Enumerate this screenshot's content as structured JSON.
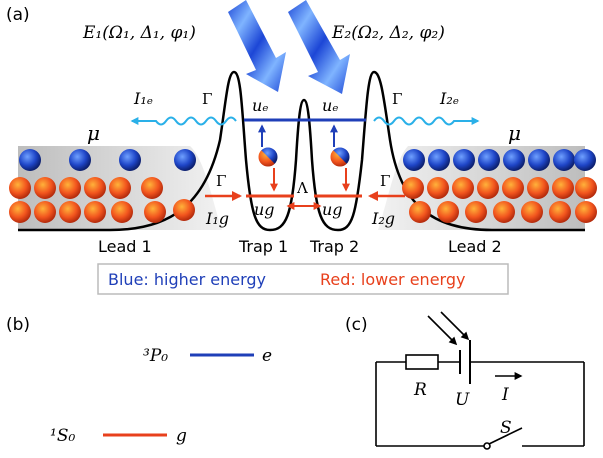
{
  "panel_a": {
    "label": "(a)",
    "field1": "E₁(Ω₁, Δ₁, φ₁)",
    "field2": "E₂(Ω₂, Δ₂, φ₂)",
    "current_1e": "I₁ₑ",
    "current_2e": "I₂ₑ",
    "current_1g": "I₁g",
    "current_2g": "I₂g",
    "gamma": "Γ",
    "lambda": "Λ",
    "mu": "μ",
    "u_e": "uₑ",
    "u_g": "ug",
    "lead1": "Lead 1",
    "lead2": "Lead 2",
    "trap1": "Trap 1",
    "trap2": "Trap 2",
    "legend_blue": "Blue: higher energy",
    "legend_red": "Red: lower energy",
    "colors": {
      "blue": "#1f3fb8",
      "red": "#e8401c",
      "cyan": "#2ab0e8"
    }
  },
  "panel_b": {
    "label": "(b)",
    "upper_state": "³P₀",
    "upper_letter": "e",
    "lower_state": "¹S₀",
    "lower_letter": "g"
  },
  "panel_c": {
    "label": "(c)",
    "resistor": "R",
    "voltage": "U",
    "current": "I",
    "switch": "S"
  }
}
